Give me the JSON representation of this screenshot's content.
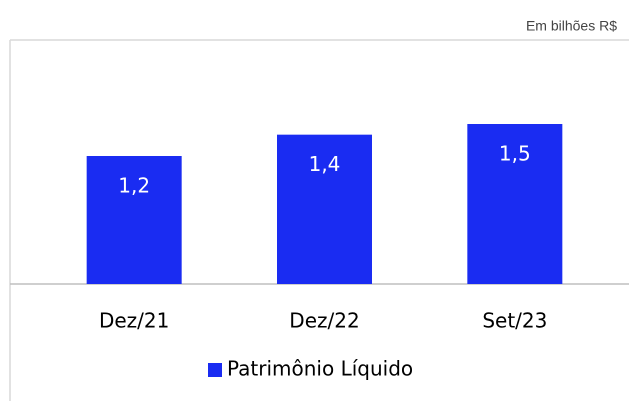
{
  "chart_data": {
    "type": "bar",
    "subtitle": "Em bilhões R$",
    "categories": [
      "Dez/21",
      "Dez/22",
      "Set/23"
    ],
    "series": [
      {
        "name": "Patrimônio Líquido",
        "color": "#1a2cf2",
        "values": [
          1.2,
          1.4,
          1.5
        ],
        "value_labels": [
          "1,2",
          "1,4",
          "1,5"
        ]
      }
    ],
    "legend": "bottom"
  }
}
